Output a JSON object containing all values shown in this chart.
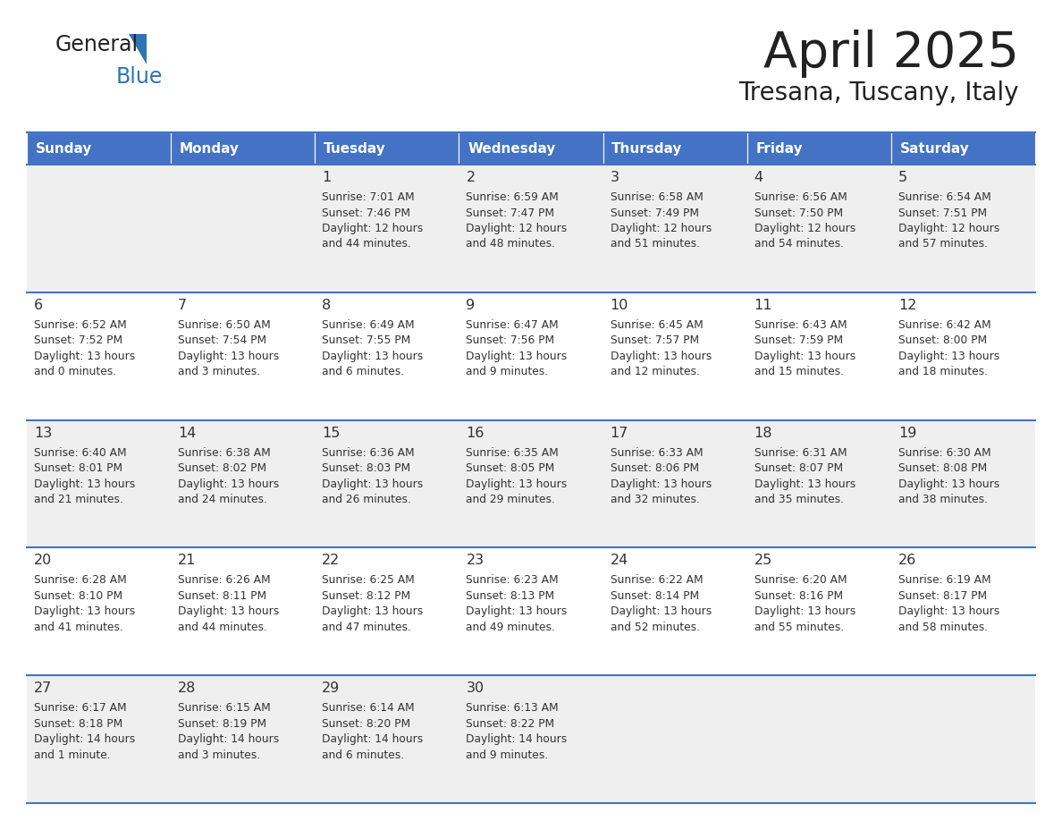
{
  "title": "April 2025",
  "subtitle": "Tresana, Tuscany, Italy",
  "days_of_week": [
    "Sunday",
    "Monday",
    "Tuesday",
    "Wednesday",
    "Thursday",
    "Friday",
    "Saturday"
  ],
  "header_bg": "#4472C4",
  "header_text": "#FFFFFF",
  "cell_bg_even": "#EFEFEF",
  "cell_bg_odd": "#FFFFFF",
  "row_line_color": "#4472C4",
  "text_color": "#333333",
  "title_color": "#222222",
  "logo_general_color": "#222222",
  "logo_blue_color": "#2E75B6",
  "calendar_data": {
    "1": {
      "sunrise": "7:01 AM",
      "sunset": "7:46 PM",
      "daylight": "12 hours and 44 minutes"
    },
    "2": {
      "sunrise": "6:59 AM",
      "sunset": "7:47 PM",
      "daylight": "12 hours and 48 minutes"
    },
    "3": {
      "sunrise": "6:58 AM",
      "sunset": "7:49 PM",
      "daylight": "12 hours and 51 minutes"
    },
    "4": {
      "sunrise": "6:56 AM",
      "sunset": "7:50 PM",
      "daylight": "12 hours and 54 minutes"
    },
    "5": {
      "sunrise": "6:54 AM",
      "sunset": "7:51 PM",
      "daylight": "12 hours and 57 minutes"
    },
    "6": {
      "sunrise": "6:52 AM",
      "sunset": "7:52 PM",
      "daylight": "13 hours and 0 minutes"
    },
    "7": {
      "sunrise": "6:50 AM",
      "sunset": "7:54 PM",
      "daylight": "13 hours and 3 minutes"
    },
    "8": {
      "sunrise": "6:49 AM",
      "sunset": "7:55 PM",
      "daylight": "13 hours and 6 minutes"
    },
    "9": {
      "sunrise": "6:47 AM",
      "sunset": "7:56 PM",
      "daylight": "13 hours and 9 minutes"
    },
    "10": {
      "sunrise": "6:45 AM",
      "sunset": "7:57 PM",
      "daylight": "13 hours and 12 minutes"
    },
    "11": {
      "sunrise": "6:43 AM",
      "sunset": "7:59 PM",
      "daylight": "13 hours and 15 minutes"
    },
    "12": {
      "sunrise": "6:42 AM",
      "sunset": "8:00 PM",
      "daylight": "13 hours and 18 minutes"
    },
    "13": {
      "sunrise": "6:40 AM",
      "sunset": "8:01 PM",
      "daylight": "13 hours and 21 minutes"
    },
    "14": {
      "sunrise": "6:38 AM",
      "sunset": "8:02 PM",
      "daylight": "13 hours and 24 minutes"
    },
    "15": {
      "sunrise": "6:36 AM",
      "sunset": "8:03 PM",
      "daylight": "13 hours and 26 minutes"
    },
    "16": {
      "sunrise": "6:35 AM",
      "sunset": "8:05 PM",
      "daylight": "13 hours and 29 minutes"
    },
    "17": {
      "sunrise": "6:33 AM",
      "sunset": "8:06 PM",
      "daylight": "13 hours and 32 minutes"
    },
    "18": {
      "sunrise": "6:31 AM",
      "sunset": "8:07 PM",
      "daylight": "13 hours and 35 minutes"
    },
    "19": {
      "sunrise": "6:30 AM",
      "sunset": "8:08 PM",
      "daylight": "13 hours and 38 minutes"
    },
    "20": {
      "sunrise": "6:28 AM",
      "sunset": "8:10 PM",
      "daylight": "13 hours and 41 minutes"
    },
    "21": {
      "sunrise": "6:26 AM",
      "sunset": "8:11 PM",
      "daylight": "13 hours and 44 minutes"
    },
    "22": {
      "sunrise": "6:25 AM",
      "sunset": "8:12 PM",
      "daylight": "13 hours and 47 minutes"
    },
    "23": {
      "sunrise": "6:23 AM",
      "sunset": "8:13 PM",
      "daylight": "13 hours and 49 minutes"
    },
    "24": {
      "sunrise": "6:22 AM",
      "sunset": "8:14 PM",
      "daylight": "13 hours and 52 minutes"
    },
    "25": {
      "sunrise": "6:20 AM",
      "sunset": "8:16 PM",
      "daylight": "13 hours and 55 minutes"
    },
    "26": {
      "sunrise": "6:19 AM",
      "sunset": "8:17 PM",
      "daylight": "13 hours and 58 minutes"
    },
    "27": {
      "sunrise": "6:17 AM",
      "sunset": "8:18 PM",
      "daylight": "14 hours and 1 minute"
    },
    "28": {
      "sunrise": "6:15 AM",
      "sunset": "8:19 PM",
      "daylight": "14 hours and 3 minutes"
    },
    "29": {
      "sunrise": "6:14 AM",
      "sunset": "8:20 PM",
      "daylight": "14 hours and 6 minutes"
    },
    "30": {
      "sunrise": "6:13 AM",
      "sunset": "8:22 PM",
      "daylight": "14 hours and 9 minutes"
    }
  },
  "calendar_grid": [
    [
      0,
      0,
      1,
      2,
      3,
      4,
      5
    ],
    [
      6,
      7,
      8,
      9,
      10,
      11,
      12
    ],
    [
      13,
      14,
      15,
      16,
      17,
      18,
      19
    ],
    [
      20,
      21,
      22,
      23,
      24,
      25,
      26
    ],
    [
      27,
      28,
      29,
      30,
      0,
      0,
      0
    ]
  ]
}
